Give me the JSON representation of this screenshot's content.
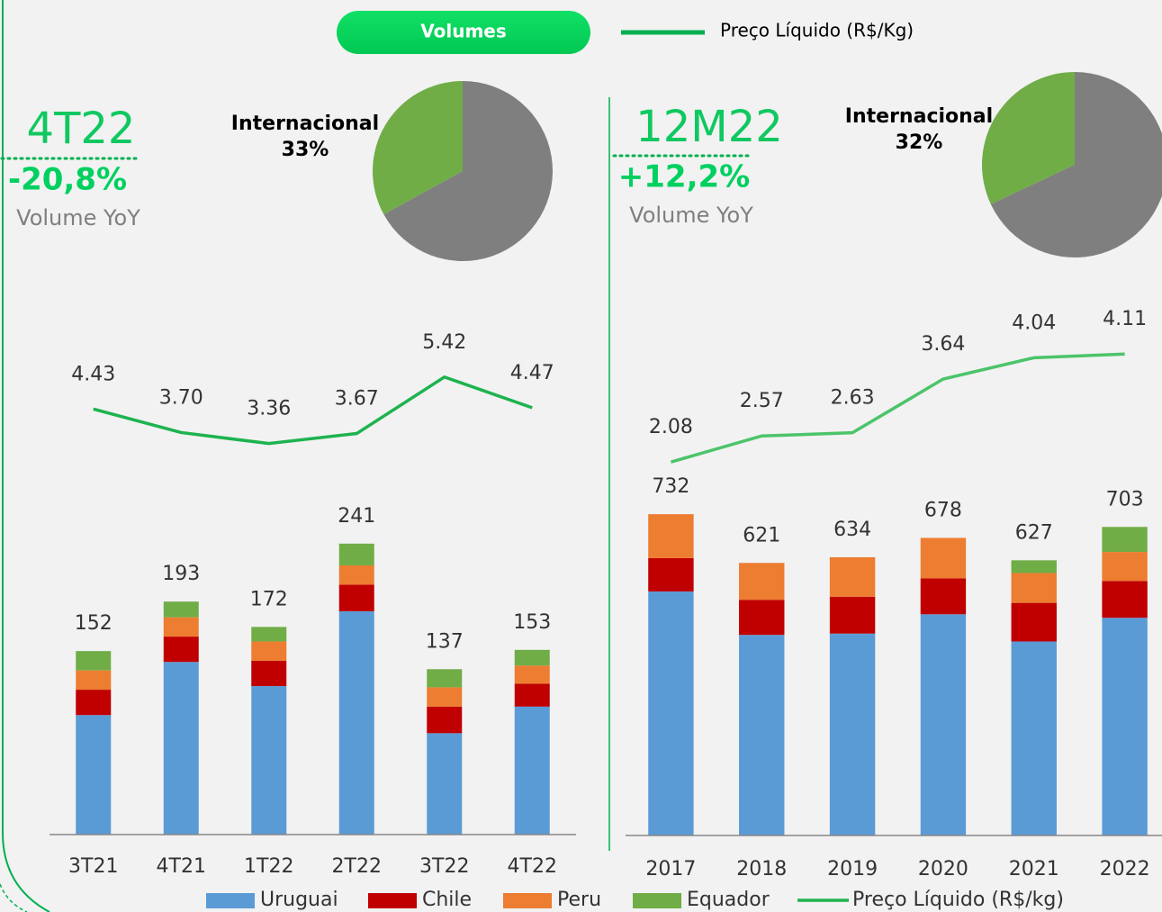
{
  "header": {
    "button": "Volumes",
    "legend": "Preço Líquido (R$/Kg)"
  },
  "kpis": [
    {
      "period": "4T22",
      "change": "-20,8%",
      "label": "Volume YoY"
    },
    {
      "period": "12M22",
      "change": "+12,2%",
      "label": "Volume YoY"
    }
  ],
  "chart_data": [
    {
      "type": "pie",
      "categories": [
        "Internacional",
        null
      ],
      "values": [
        33,
        67
      ],
      "value_labels": [
        "33%",
        null
      ],
      "colors": [
        "#70ad47",
        "#7f7f7f"
      ]
    },
    {
      "type": "combo",
      "categories": [
        "3T21",
        "4T21",
        "1T22",
        "2T22",
        "3T22",
        "4T22"
      ],
      "series": [
        {
          "name": "Uruguai",
          "color": "#5b9bd5",
          "values": [
            99,
            143,
            123,
            185,
            84,
            106
          ]
        },
        {
          "name": "Chile",
          "color": "#c00000",
          "values": [
            21,
            21,
            21,
            22,
            22,
            19
          ]
        },
        {
          "name": "Peru",
          "color": "#ed7d31",
          "values": [
            16,
            16,
            16,
            16,
            16,
            15
          ]
        },
        {
          "name": "Equador",
          "color": "#70ad47",
          "values": [
            16,
            13,
            12,
            18,
            15,
            13
          ]
        },
        {
          "name": "Preço Líquido (R$/kg)",
          "type": "line",
          "axis": "y2",
          "color": "#1db34f",
          "values": [
            4.43,
            3.7,
            3.36,
            3.67,
            5.42,
            4.47
          ],
          "value_labels": [
            "4.43",
            "3.70",
            "3.36",
            "3.67",
            "5.42",
            "4.47"
          ]
        }
      ],
      "totals": [
        152,
        193,
        172,
        241,
        137,
        153
      ],
      "ylim": [
        0,
        440
      ],
      "y2lim": [
        -8.75,
        7.7
      ]
    },
    {
      "type": "pie",
      "categories": [
        "Internacional",
        null
      ],
      "values": [
        32,
        68
      ],
      "value_labels": [
        "32%",
        null
      ],
      "colors": [
        "#70ad47",
        "#7f7f7f"
      ]
    },
    {
      "type": "combo",
      "categories": [
        "2017",
        "2018",
        "2019",
        "2020",
        "2021",
        "2022"
      ],
      "series": [
        {
          "color": "#5b9bd5",
          "values": [
            556,
            457,
            460,
            504,
            442,
            496
          ]
        },
        {
          "color": "#c00000",
          "values": [
            76,
            80,
            84,
            82,
            88,
            84
          ]
        },
        {
          "color": "#ed7d31",
          "values": [
            100,
            84,
            90,
            92,
            68,
            66
          ]
        },
        {
          "color": "#70ad47",
          "values": [
            0,
            0,
            0,
            0,
            29,
            57
          ]
        },
        {
          "type": "line",
          "axis": "y2",
          "color": "#4cc46a",
          "values": [
            2.08,
            2.57,
            2.63,
            3.64,
            4.04,
            4.11
          ]
        }
      ],
      "totals": [
        732,
        621,
        634,
        678,
        627,
        703
      ],
      "ylim": [
        0,
        1200
      ],
      "y2lim": [
        -4.94,
        4.96
      ]
    }
  ]
}
